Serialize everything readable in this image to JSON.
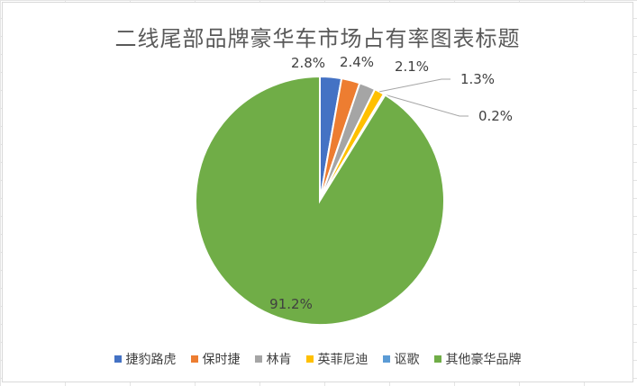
{
  "chart_data": {
    "type": "pie",
    "title": "二线尾部品牌豪华车市场占有率图表标题",
    "categories": [
      "捷豹路虎",
      "保时捷",
      "林肯",
      "英菲尼迪",
      "讴歌",
      "其他豪华品牌"
    ],
    "values": [
      2.8,
      2.4,
      2.1,
      1.3,
      0.2,
      91.2
    ],
    "labels": [
      "2.8%",
      "2.4%",
      "2.1%",
      "1.3%",
      "0.2%",
      "91.2%"
    ],
    "colors": [
      "#4472c4",
      "#ed7d31",
      "#a5a5a5",
      "#ffc000",
      "#5b9bd5",
      "#70ad47"
    ],
    "legend_position": "bottom",
    "start_angle": "top-clockwise"
  }
}
